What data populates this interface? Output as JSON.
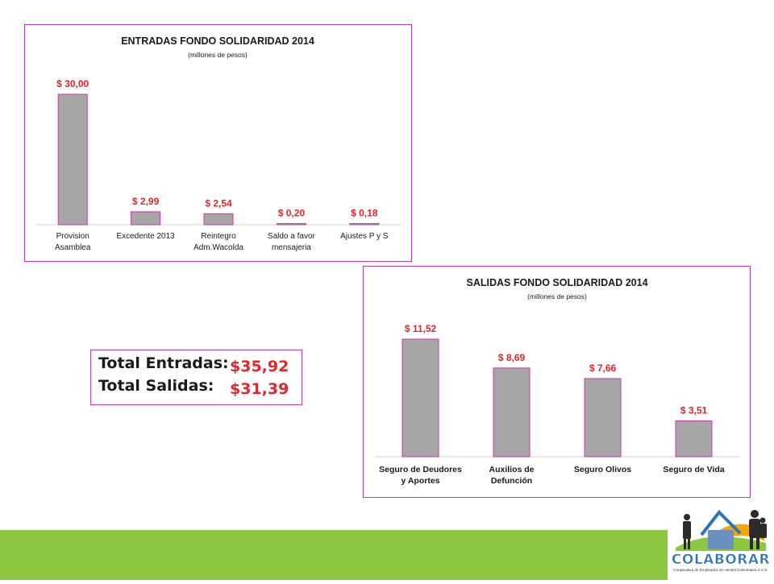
{
  "charts": {
    "entradas": {
      "title": "ENTRADAS FONDO SOLIDARIDAD 2014",
      "subtitle": "(millones de pesos)"
    },
    "salidas": {
      "title": "SALIDAS FONDO SOLIDARIDAD 2014",
      "subtitle": "(millones de pesos)"
    }
  },
  "chart_data": [
    {
      "type": "bar",
      "title": "ENTRADAS FONDO SOLIDARIDAD 2014",
      "subtitle": "(millones de pesos)",
      "categories": [
        [
          "Provision",
          "Asamblea"
        ],
        [
          "Excedente 2013"
        ],
        [
          "Reintegro",
          "Adm.Wacolda"
        ],
        [
          "Saldo a favor",
          "mensajeria"
        ],
        [
          "Ajustes P y S"
        ]
      ],
      "values": [
        30.0,
        2.99,
        2.54,
        0.2,
        0.18
      ],
      "data_labels": [
        "$ 30,00",
        "$ 2,99",
        "$ 2,54",
        "$ 0,20",
        "$ 0,18"
      ],
      "ylim": [
        0,
        30
      ],
      "grid": false,
      "bar_color": "#a6a6a6",
      "bar_border": "#c53ab3",
      "label_color": "#e8232a"
    },
    {
      "type": "bar",
      "title": "SALIDAS FONDO SOLIDARIDAD 2014",
      "subtitle": "(millones de pesos)",
      "categories": [
        [
          "Seguro de Deudores",
          "y Aportes"
        ],
        [
          "Auxilios de",
          "Defunción"
        ],
        [
          "Seguro Olivos"
        ],
        [
          "Seguro de Vida"
        ]
      ],
      "values": [
        11.52,
        8.69,
        7.66,
        3.51
      ],
      "data_labels": [
        "$ 11,52",
        "$ 8,69",
        "$ 7,66",
        "$ 3,51"
      ],
      "ylim": [
        0,
        11.52
      ],
      "grid": false,
      "bar_color": "#a6a6a6",
      "bar_border": "#c53ab3",
      "label_color": "#e8232a"
    }
  ],
  "totals": {
    "entradas_label": "Total Entradas:",
    "entradas_value": "$35,92",
    "salidas_label": "Total Salidas:",
    "salidas_value": "$31,39"
  },
  "logo": {
    "name": "COLABORAR",
    "tagline": "Cooperativa de Empleados de Henkel Colombiana S.A.S."
  },
  "colors": {
    "accent_border": "#c53ab3",
    "value_red": "#e8232a",
    "footer_green": "#8dc63f",
    "logo_blue": "#2e74b5",
    "logo_orange": "#f7a600"
  }
}
